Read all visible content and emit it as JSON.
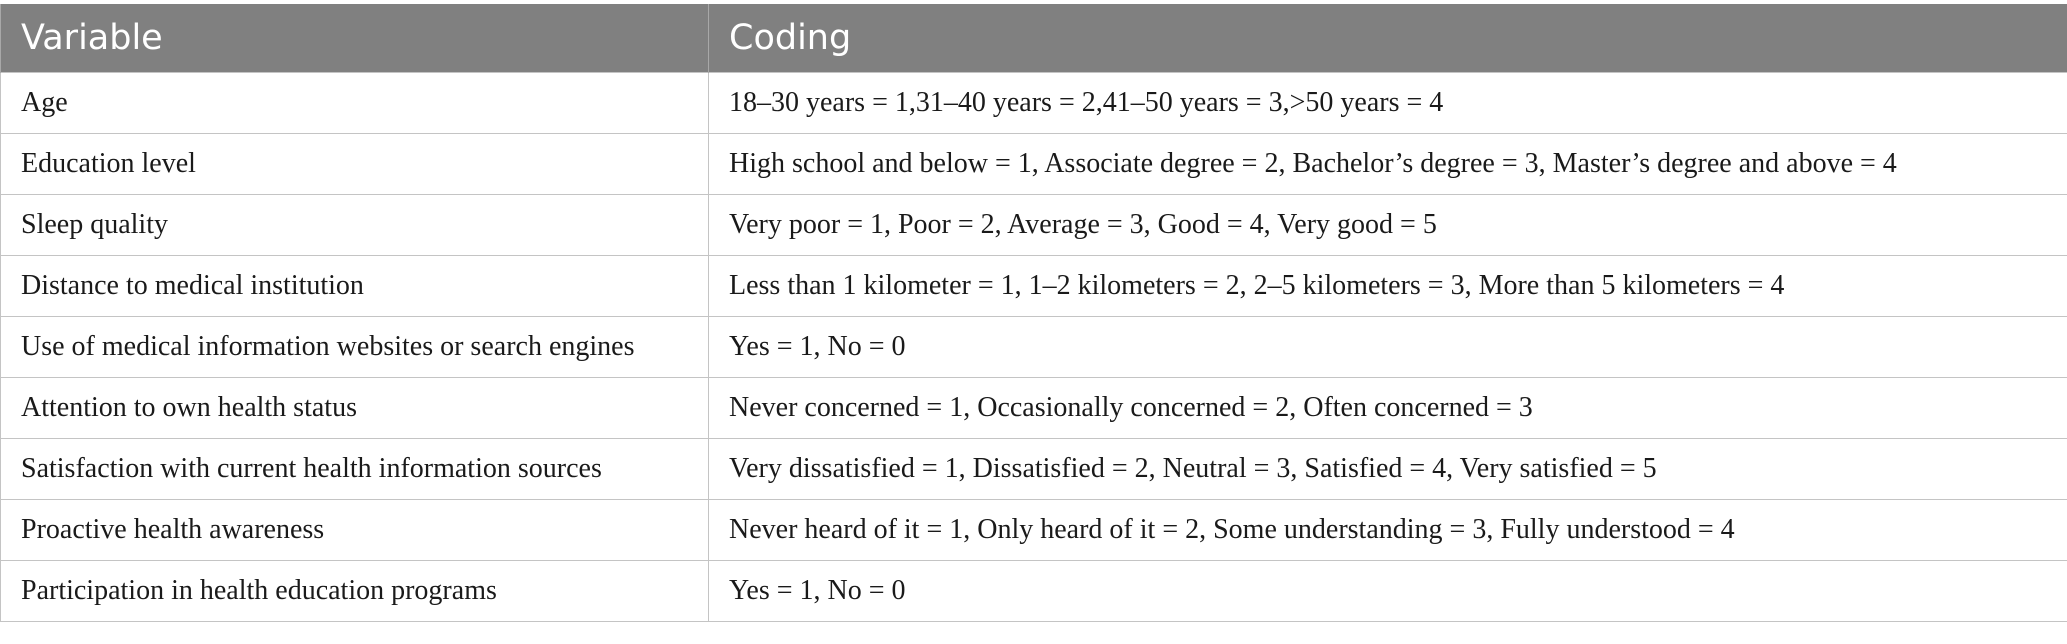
{
  "table": {
    "headers": [
      "Variable",
      "Coding"
    ],
    "rows": [
      {
        "variable": "Age",
        "coding": "18–30 years = 1,31–40 years = 2,41–50 years = 3,>50 years = 4"
      },
      {
        "variable": "Education level",
        "coding": "High school and below = 1, Associate degree = 2, Bachelor’s degree = 3, Master’s degree and above = 4"
      },
      {
        "variable": "Sleep quality",
        "coding": "Very poor = 1, Poor = 2, Average = 3, Good = 4, Very good = 5"
      },
      {
        "variable": "Distance to medical institution",
        "coding": "Less than 1 kilometer = 1, 1–2 kilometers = 2, 2–5 kilometers = 3, More than 5 kilometers = 4"
      },
      {
        "variable": "Use of medical information websites or search engines",
        "coding": "Yes = 1, No = 0"
      },
      {
        "variable": "Attention to own health status",
        "coding": "Never concerned = 1, Occasionally concerned = 2, Often concerned = 3"
      },
      {
        "variable": "Satisfaction with current health information sources",
        "coding": "Very dissatisfied = 1, Dissatisfied = 2, Neutral = 3, Satisfied = 4, Very satisfied = 5"
      },
      {
        "variable": "Proactive health awareness",
        "coding": "Never heard of it = 1, Only heard of it = 2, Some understanding = 3, Fully understood = 4"
      },
      {
        "variable": "Participation in health education programs",
        "coding": "Yes = 1, No = 0"
      }
    ]
  },
  "colors": {
    "header_background": "#808080",
    "header_text": "#ffffff",
    "border": "#c4c4c4"
  }
}
